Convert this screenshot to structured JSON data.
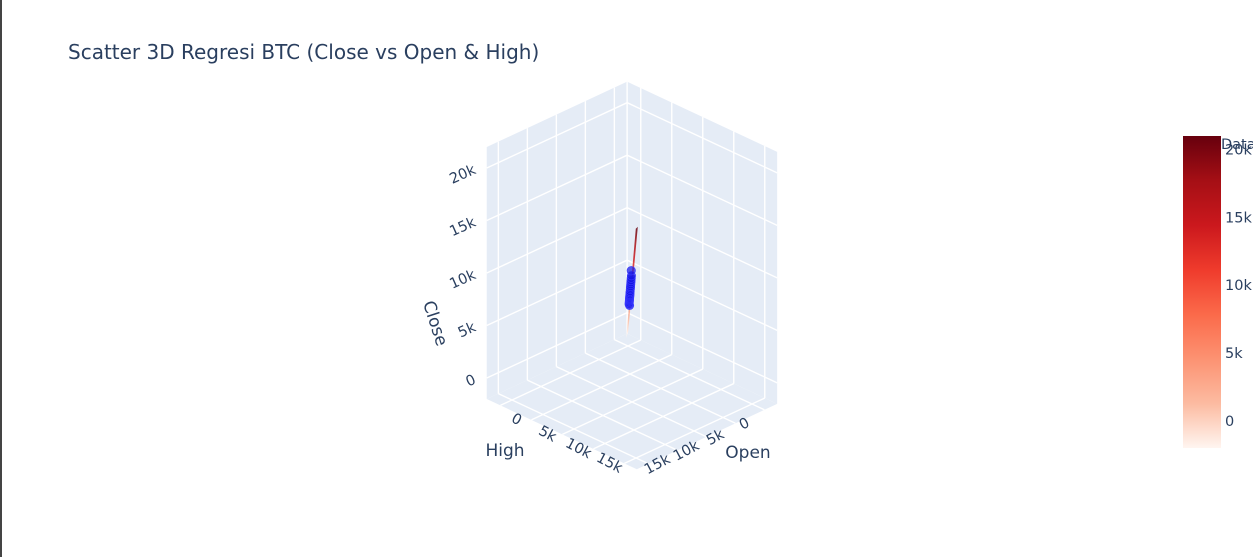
{
  "title": "Scatter 3D Regresi BTC (Close vs Open & High)",
  "colors": {
    "scene_bg": "#e5ecf6",
    "grid": "#ffffff",
    "marker": "#1414e6",
    "text": "#2a3f5f",
    "colorscale": [
      "#fff5f0",
      "#fcbba1",
      "#fc9272",
      "#fb6a4a",
      "#ef3b2c",
      "#cb181d",
      "#a50f15",
      "#67000d"
    ]
  },
  "chart_data": {
    "type": "scatter",
    "mode": "3d",
    "title": "Scatter 3D Regresi BTC (Close vs Open & High)",
    "axes": {
      "x": {
        "label": "Open",
        "ticks": [
          "0",
          "5k",
          "10k",
          "15k"
        ],
        "range": [
          0,
          20000
        ]
      },
      "y": {
        "label": "High",
        "ticks": [
          "0",
          "5k",
          "10k",
          "15k"
        ],
        "range": [
          0,
          20000
        ]
      },
      "z": {
        "label": "Close",
        "ticks": [
          "0",
          "5k",
          "10k",
          "15k",
          "20k"
        ],
        "range": [
          0,
          22000
        ]
      }
    },
    "series": [
      {
        "type": "scatter3d",
        "points": [
          {
            "x": 4000,
            "y": 4000,
            "z": 4000
          },
          {
            "x": 4200,
            "y": 4300,
            "z": 4250
          },
          {
            "x": 4500,
            "y": 4600,
            "z": 4550
          },
          {
            "x": 4800,
            "y": 4900,
            "z": 4850
          },
          {
            "x": 5000,
            "y": 5100,
            "z": 5050
          },
          {
            "x": 5200,
            "y": 5300,
            "z": 5250
          },
          {
            "x": 5400,
            "y": 5500,
            "z": 5450
          },
          {
            "x": 5600,
            "y": 5700,
            "z": 5650
          },
          {
            "x": 5800,
            "y": 5900,
            "z": 5850
          },
          {
            "x": 6000,
            "y": 6100,
            "z": 6050
          },
          {
            "x": 6200,
            "y": 6300,
            "z": 6250
          },
          {
            "x": 6500,
            "y": 6600,
            "z": 6550
          },
          {
            "x": 6800,
            "y": 6900,
            "z": 6850
          },
          {
            "x": 7200,
            "y": 7300,
            "z": 7250
          },
          {
            "x": 7500,
            "y": 7600,
            "z": 7550
          },
          {
            "x": 7800,
            "y": 7900,
            "z": 7850
          },
          {
            "x": 8200,
            "y": 8300,
            "z": 8250
          },
          {
            "x": 8600,
            "y": 8700,
            "z": 8650
          },
          {
            "x": 9000,
            "y": 9100,
            "z": 9050
          },
          {
            "x": 9500,
            "y": 9600,
            "z": 9550
          },
          {
            "x": 10000,
            "y": 10100,
            "z": 10050
          },
          {
            "x": 11000,
            "y": 11200,
            "z": 11100
          }
        ]
      },
      {
        "type": "surface",
        "plane": {
          "x_range": [
            -2000,
            22000
          ],
          "y_range": [
            -2000,
            22000
          ],
          "z_range": [
            -2000,
            21000
          ]
        }
      }
    ],
    "colorbar": {
      "title": "Data",
      "ticks": [
        {
          "label": "0",
          "value": 0
        },
        {
          "label": "5k",
          "value": 5000
        },
        {
          "label": "10k",
          "value": 10000
        },
        {
          "label": "15k",
          "value": 15000
        },
        {
          "label": "20k",
          "value": 20000
        }
      ],
      "range": [
        -2000,
        21000
      ]
    }
  }
}
